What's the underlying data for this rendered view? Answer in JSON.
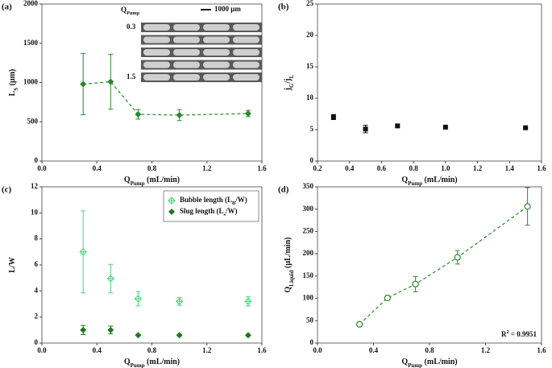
{
  "chart_data": [
    {
      "type": "scatter",
      "panel_label": "(a)",
      "x_label": [
        {
          "text": "Q"
        },
        {
          "sub": "Pump"
        },
        {
          "text": " (mL/min)"
        }
      ],
      "y_label": [
        {
          "text": "L"
        },
        {
          "sub": "S"
        },
        {
          "text": " (μm)"
        }
      ],
      "x": [
        0.3,
        0.5,
        0.7,
        1.0,
        1.5
      ],
      "series": [
        {
          "color": "#2a8a2a",
          "marker": "diamond",
          "line": "dashed",
          "values": [
            980,
            1010,
            595,
            585,
            605
          ],
          "errors": [
            390,
            350,
            60,
            70,
            40
          ]
        }
      ],
      "xlim": [
        0,
        1.6
      ],
      "xticks": [
        {
          "value": 0,
          "label": "0.0"
        },
        0.4,
        0.8,
        1.2,
        1.6
      ],
      "ylim": [
        0,
        2000
      ],
      "yticks": [
        0,
        500,
        1000,
        1500,
        2000
      ],
      "inset": {
        "title": [
          {
            "text": "Q"
          },
          {
            "sub": "Pump"
          }
        ],
        "labels": [
          "0.3",
          "1.5"
        ],
        "scale_bar": "1000 μm"
      }
    },
    {
      "type": "scatter",
      "panel_label": "(b)",
      "x_label": [
        {
          "text": "Q"
        },
        {
          "sub": "Pump"
        },
        {
          "text": " (mL/min)"
        }
      ],
      "y_label": [
        {
          "text": "j"
        },
        {
          "sub": "G"
        },
        {
          "text": "/j"
        },
        {
          "sub": "L"
        }
      ],
      "x": [
        0.3,
        0.5,
        0.7,
        1.0,
        1.5
      ],
      "series": [
        {
          "color": "#111111",
          "marker": "square",
          "values": [
            7.0,
            5.1,
            5.6,
            5.4,
            5.3
          ],
          "errors": [
            0.4,
            0.6,
            0.3,
            0,
            0
          ]
        }
      ],
      "xlim": [
        0.2,
        1.6
      ],
      "xticks": [
        0.2,
        0.4,
        0.6,
        0.8,
        {
          "value": 1,
          "label": "1.0"
        },
        1.2,
        1.4,
        1.6
      ],
      "ylim": [
        0,
        25
      ],
      "yticks": [
        0,
        5,
        10,
        15,
        20,
        25
      ]
    },
    {
      "type": "scatter",
      "panel_label": "(c)",
      "x_label": [
        {
          "text": "Q"
        },
        {
          "sub": "Pump"
        },
        {
          "text": " (mL/min)"
        }
      ],
      "y_label": [
        {
          "text": "L/W"
        }
      ],
      "x": [
        0.3,
        0.5,
        0.7,
        1.0,
        1.5
      ],
      "series": [
        {
          "name": [
            {
              "text": "Bubble length (L"
            },
            {
              "sub": "B"
            },
            {
              "text": "/W)"
            }
          ],
          "color": "#45d67a",
          "marker": "diamond-open",
          "values": [
            7.0,
            4.95,
            3.4,
            3.2,
            3.2
          ],
          "errors": [
            3.15,
            1.1,
            0.55,
            0.3,
            0.35
          ]
        },
        {
          "name": [
            {
              "text": "Slug length (L"
            },
            {
              "sub": "s"
            },
            {
              "text": "/W)"
            }
          ],
          "color": "#1f7a1f",
          "marker": "diamond",
          "values": [
            1.0,
            1.0,
            0.6,
            0.6,
            0.6
          ],
          "errors": [
            0.35,
            0.3,
            0,
            0,
            0
          ]
        }
      ],
      "legend": "upper right",
      "xlim": [
        0,
        1.6
      ],
      "xticks": [
        {
          "value": 0,
          "label": "0.0"
        },
        0.4,
        0.8,
        1.2,
        1.6
      ],
      "ylim": [
        0,
        12
      ],
      "yticks": [
        0,
        2,
        4,
        6,
        8,
        10,
        12
      ]
    },
    {
      "type": "scatter",
      "panel_label": "(d)",
      "x_label": [
        {
          "text": "Q"
        },
        {
          "sub": "Pump"
        },
        {
          "text": " (mL/min)"
        }
      ],
      "y_label": [
        {
          "text": "Q"
        },
        {
          "sub": "Liquid"
        },
        {
          "text": " (μL/min)"
        }
      ],
      "x": [
        0.3,
        0.5,
        0.7,
        1.0,
        1.5
      ],
      "series": [
        {
          "color": "#2a8a2a",
          "marker": "circle-open",
          "line": "dashed",
          "values": [
            42,
            101,
            132,
            192,
            306
          ],
          "errors": [
            5,
            0,
            17,
            15,
            42
          ]
        }
      ],
      "annotation": [
        {
          "text": "R"
        },
        {
          "sup": "2"
        },
        {
          "text": " = 0.9951"
        }
      ],
      "xlim": [
        0,
        1.6
      ],
      "xticks": [
        {
          "value": 0,
          "label": "0.0"
        },
        0.4,
        0.8,
        1.2,
        1.6
      ],
      "ylim": [
        0,
        350
      ],
      "yticks": [
        0,
        50,
        100,
        150,
        200,
        250,
        300,
        350
      ]
    }
  ]
}
